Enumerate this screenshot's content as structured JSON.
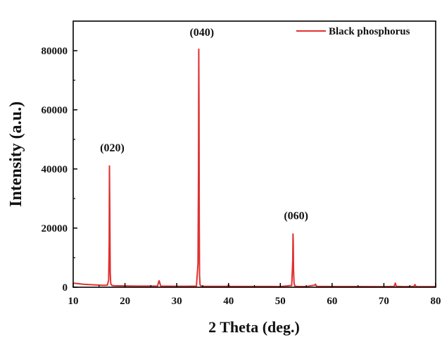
{
  "chart_data": {
    "type": "line",
    "xlabel": "2 Theta (deg.)",
    "ylabel": "Intensity (a.u.)",
    "xlim": [
      10,
      80
    ],
    "ylim": [
      0,
      90000
    ],
    "x_ticks": [
      10,
      20,
      30,
      40,
      50,
      60,
      70,
      80
    ],
    "y_ticks": [
      0,
      20000,
      40000,
      60000,
      80000
    ],
    "grid": false,
    "legend_position": "top-right",
    "series": [
      {
        "name": "Black phosphorus",
        "color": "#e03030",
        "x": [
          10.0,
          11.0,
          12.0,
          13.0,
          14.0,
          15.0,
          16.0,
          16.6,
          16.85,
          16.95,
          17.0,
          17.05,
          17.15,
          17.25,
          17.5,
          18.0,
          20.0,
          22.0,
          24.0,
          26.3,
          26.5,
          26.6,
          26.7,
          26.9,
          28.0,
          30.0,
          32.0,
          33.8,
          34.1,
          34.2,
          34.25,
          34.3,
          34.35,
          34.4,
          34.5,
          34.7,
          35.0,
          37.0,
          39.8,
          40.0,
          40.2,
          42.0,
          45.0,
          48.0,
          50.0,
          52.2,
          52.4,
          52.45,
          52.5,
          52.55,
          52.65,
          52.8,
          53.2,
          55.0,
          56.6,
          56.8,
          57.0,
          60.0,
          65.0,
          70.0,
          72.0,
          72.2,
          72.4,
          74.0,
          75.8,
          76.0,
          76.2,
          78.0,
          80.0
        ],
        "y": [
          1400,
          1200,
          1000,
          900,
          800,
          700,
          650,
          700,
          2500,
          15000,
          41000,
          30000,
          5000,
          1200,
          600,
          500,
          450,
          400,
          380,
          400,
          1800,
          2200,
          1600,
          400,
          350,
          330,
          320,
          400,
          8000,
          40000,
          80500,
          60000,
          20000,
          4000,
          800,
          400,
          330,
          310,
          300,
          800,
          300,
          280,
          270,
          260,
          250,
          600,
          9000,
          18000,
          15000,
          6000,
          1500,
          400,
          260,
          250,
          700,
          1000,
          300,
          240,
          230,
          220,
          300,
          1400,
          300,
          220,
          300,
          900,
          250,
          200,
          200
        ]
      }
    ],
    "annotations": [
      {
        "text": "(020)",
        "x": 17.0,
        "y": 46000
      },
      {
        "text": "(040)",
        "x": 34.3,
        "y": 85000
      },
      {
        "text": "(060)",
        "x": 52.5,
        "y": 23000
      }
    ]
  }
}
